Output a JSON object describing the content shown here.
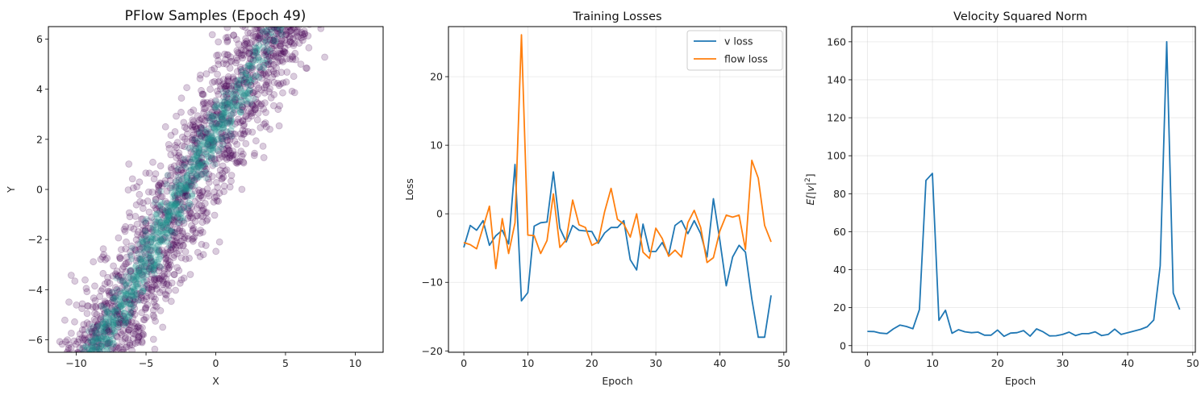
{
  "chart_data": [
    {
      "type": "scatter",
      "title": "PFlow Samples (Epoch 49)",
      "xlabel": "X",
      "ylabel": "Y",
      "xlim": [
        -12,
        12
      ],
      "ylim": [
        -6.5,
        6.5
      ],
      "xticks": [
        -10,
        -5,
        0,
        5,
        10
      ],
      "yticks": [
        -6,
        -4,
        -2,
        0,
        2,
        4,
        6
      ],
      "grid": false,
      "colors": {
        "low_density": "#440154",
        "high_density": "#21918c"
      },
      "description_points": {
        "band_centerline": [
          [
            -8,
            -6.5
          ],
          [
            -2,
            0
          ],
          [
            4.5,
            6.5
          ]
        ],
        "band_halfwidth_x": 3.5
      }
    },
    {
      "type": "line",
      "title": "Training Losses",
      "xlabel": "Epoch",
      "ylabel": "Loss",
      "xlim": [
        -2.4,
        50.4
      ],
      "ylim": [
        -20.2,
        27.3
      ],
      "xticks": [
        0,
        10,
        20,
        30,
        40,
        50
      ],
      "yticks": [
        -20,
        -10,
        0,
        10,
        20
      ],
      "grid": true,
      "legend": "top-right",
      "x": [
        0,
        1,
        2,
        3,
        4,
        5,
        6,
        7,
        8,
        9,
        10,
        11,
        12,
        13,
        14,
        15,
        16,
        17,
        18,
        19,
        20,
        21,
        22,
        23,
        24,
        25,
        26,
        27,
        28,
        29,
        30,
        31,
        32,
        33,
        34,
        35,
        36,
        37,
        38,
        39,
        40,
        41,
        42,
        43,
        44,
        45,
        46,
        47,
        48
      ],
      "series": [
        {
          "name": "v loss",
          "color": "#1f77b4",
          "values": [
            -4.9,
            -1.7,
            -2.4,
            -1.0,
            -4.6,
            -3.2,
            -2.4,
            -4.4,
            7.2,
            -12.7,
            -11.5,
            -1.8,
            -1.3,
            -1.2,
            6.1,
            -2.1,
            -4.1,
            -1.7,
            -2.4,
            -2.5,
            -2.6,
            -4.3,
            -2.8,
            -2.0,
            -2.0,
            -1.0,
            -6.7,
            -8.2,
            -1.5,
            -5.5,
            -5.5,
            -4.2,
            -6.0,
            -1.7,
            -1.0,
            -2.9,
            -1.0,
            -2.9,
            -6.3,
            2.2,
            -3.9,
            -10.5,
            -6.3,
            -4.6,
            -5.6,
            -12.4,
            -18.0,
            -18.0,
            -11.9
          ]
        },
        {
          "name": "flow loss",
          "color": "#ff7f0e",
          "values": [
            -4.2,
            -4.5,
            -5.1,
            -2.0,
            1.1,
            -8.0,
            -0.7,
            -5.8,
            -1.3,
            26.1,
            -3.1,
            -3.2,
            -5.8,
            -3.9,
            2.9,
            -4.9,
            -3.8,
            2.0,
            -1.6,
            -2.0,
            -4.6,
            -4.1,
            0.3,
            3.7,
            -0.8,
            -1.5,
            -3.4,
            0.0,
            -5.6,
            -6.5,
            -2.1,
            -3.6,
            -6.2,
            -5.3,
            -6.3,
            -1.3,
            0.5,
            -2.0,
            -7.1,
            -6.4,
            -2.5,
            -0.2,
            -0.5,
            -0.2,
            -5.2,
            7.8,
            5.2,
            -1.7,
            -4.1
          ]
        }
      ]
    },
    {
      "type": "line",
      "title": "Velocity Squared Norm",
      "xlabel": "Epoch",
      "ylabel": "E[|v|²]",
      "ylabel_parts": {
        "main": "E[|v|",
        "sup": "2",
        "end": "]"
      },
      "xlim": [
        -2.4,
        50.4
      ],
      "ylim": [
        -3.5,
        168
      ],
      "xticks": [
        0,
        10,
        20,
        30,
        40,
        50
      ],
      "yticks": [
        0,
        20,
        40,
        60,
        80,
        100,
        120,
        140,
        160
      ],
      "grid": true,
      "x": [
        0,
        1,
        2,
        3,
        4,
        5,
        6,
        7,
        8,
        9,
        10,
        11,
        12,
        13,
        14,
        15,
        16,
        17,
        18,
        19,
        20,
        21,
        22,
        23,
        24,
        25,
        26,
        27,
        28,
        29,
        30,
        31,
        32,
        33,
        34,
        35,
        36,
        37,
        38,
        39,
        40,
        41,
        42,
        43,
        44,
        45,
        46,
        47,
        48
      ],
      "series": [
        {
          "color": "#1f77b4",
          "values": [
            7.5,
            7.4,
            6.6,
            6.3,
            8.8,
            10.8,
            10.1,
            8.9,
            19.0,
            87.0,
            90.7,
            13.3,
            18.6,
            6.5,
            8.4,
            7.3,
            6.8,
            7.1,
            5.5,
            5.5,
            8.2,
            4.9,
            6.6,
            6.8,
            7.9,
            5.0,
            8.8,
            7.3,
            5.1,
            5.2,
            5.9,
            7.1,
            5.3,
            6.3,
            6.3,
            7.3,
            5.3,
            5.9,
            8.7,
            5.9,
            6.8,
            7.7,
            8.6,
            9.9,
            13.5,
            42.0,
            160.0,
            27.7,
            19.0
          ]
        }
      ]
    }
  ]
}
